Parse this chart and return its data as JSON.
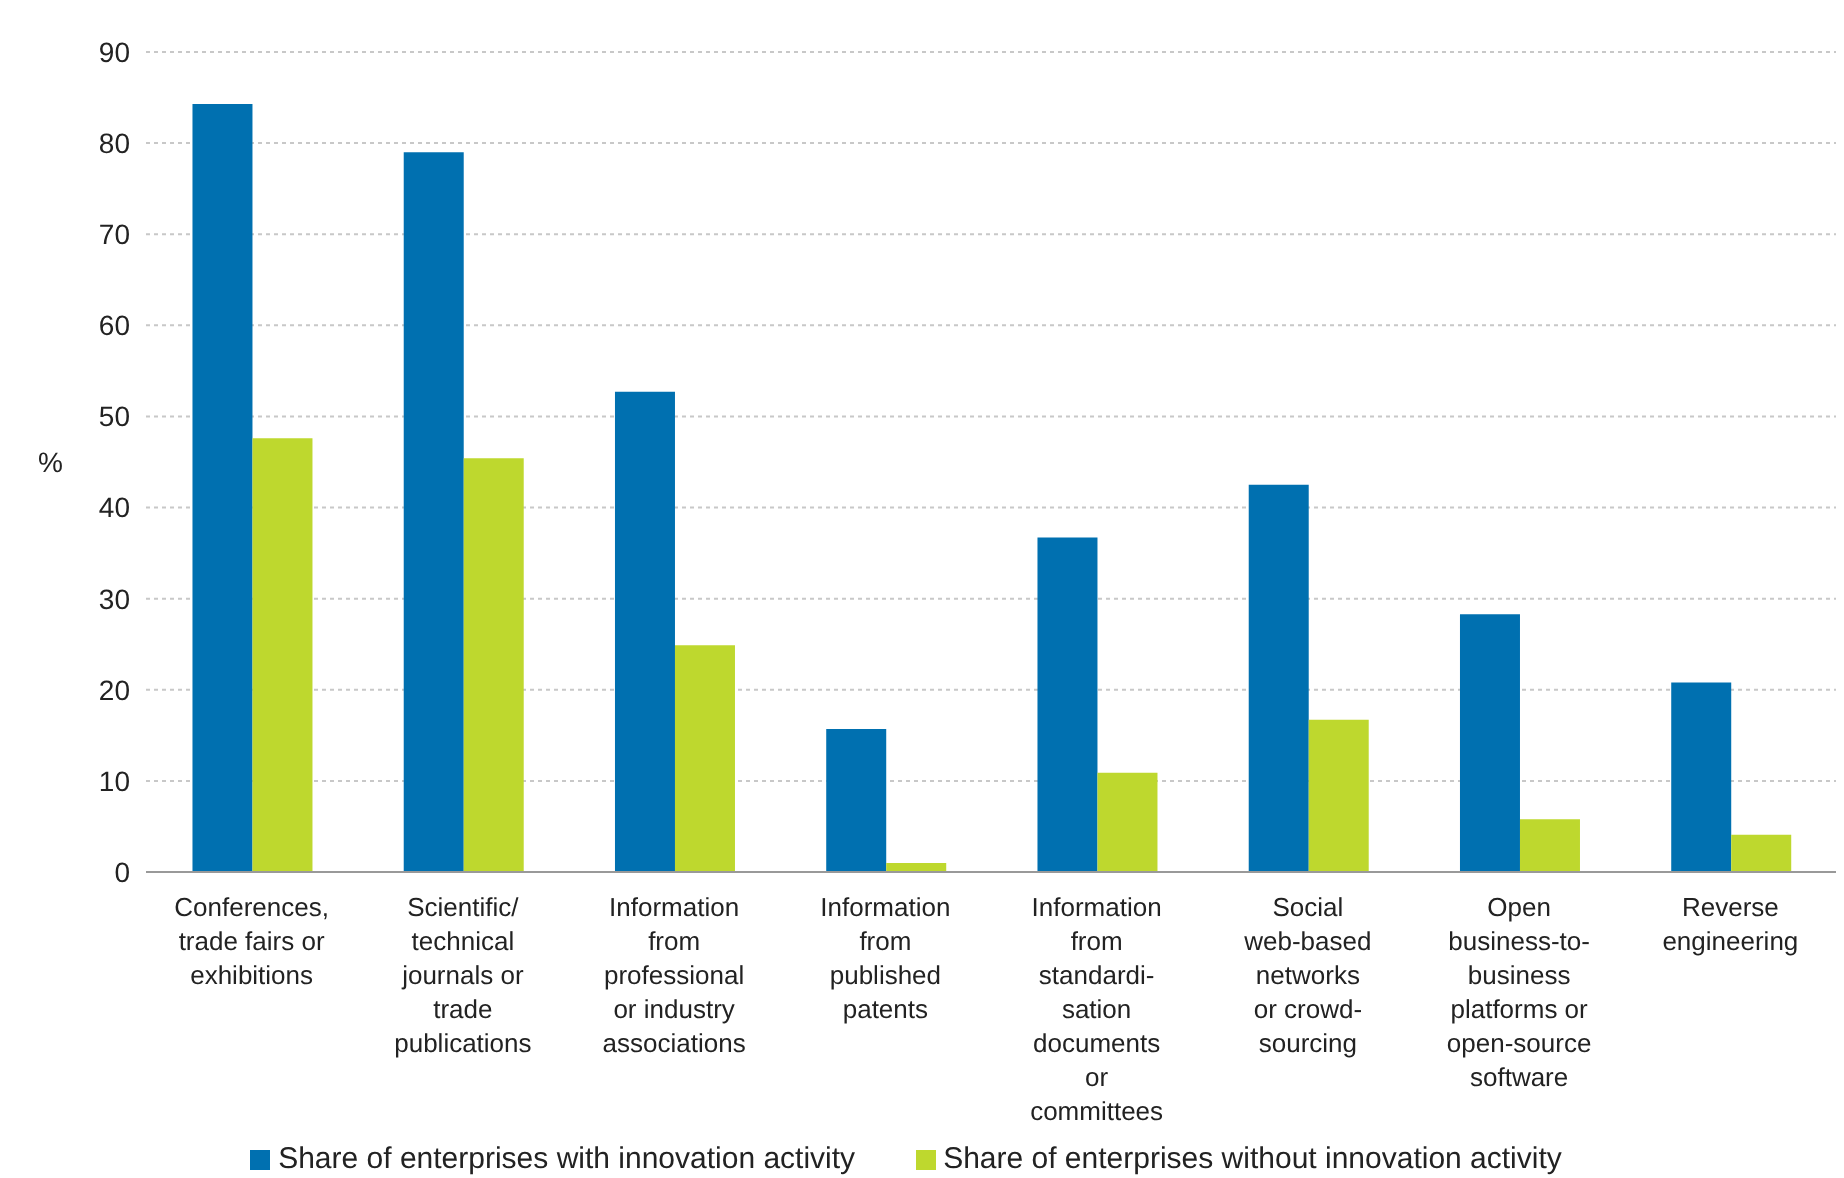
{
  "chart_data": {
    "type": "bar",
    "ylabel": "%",
    "categories": [
      "Conferences,\ntrade fairs or\nexhibitions",
      "Scientific/\ntechnical\njournals or\ntrade\npublications",
      "Information\nfrom\nprofessional\nor industry\nassociations",
      "Information\nfrom\npublished\npatents",
      "Information\nfrom\nstandardi-\nsation\ndocuments\nor\ncommittees",
      "Social\nweb-based\nnetworks\nor crowd-\nsourcing",
      "Open\nbusiness-to-\nbusiness\nplatforms or\nopen-source\nsoftware",
      "Reverse\nengineering"
    ],
    "series": [
      {
        "name": "Share of enterprises with innovation activity",
        "color": "#0070b0",
        "values": [
          84.3,
          79,
          52.7,
          15.7,
          36.7,
          42.5,
          28.3,
          20.8
        ]
      },
      {
        "name": "Share of enterprises without innovation activity",
        "color": "#bed82e",
        "values": [
          47.6,
          45.4,
          24.9,
          1,
          10.9,
          16.7,
          5.8,
          4.1
        ]
      }
    ],
    "ylim": [
      0,
      90
    ],
    "yticks": [
      0,
      10,
      20,
      30,
      40,
      50,
      60,
      70,
      80,
      90
    ],
    "grid": "y",
    "legend": "bottom"
  }
}
